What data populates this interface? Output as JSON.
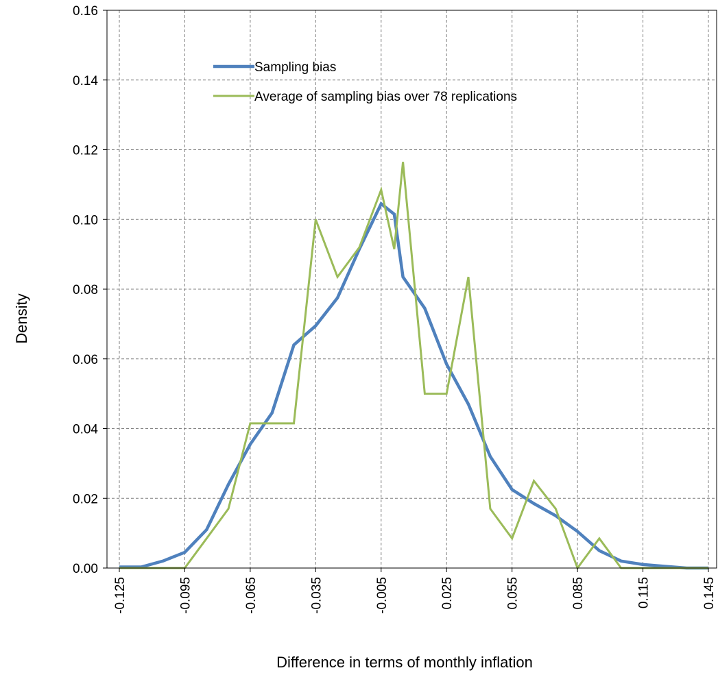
{
  "chart_data": {
    "type": "line",
    "title": "",
    "xlabel": "Difference in terms of monthly inflation",
    "ylabel": "Density",
    "xlim": [
      -0.125,
      0.145
    ],
    "ylim": [
      0,
      0.16
    ],
    "grid": true,
    "legend_position": "top-center",
    "x_ticks": [
      "-0.125",
      "-0.095",
      "-0.065",
      "-0.035",
      "-0.005",
      "0.025",
      "0.055",
      "0.085",
      "0.115",
      "0.145"
    ],
    "y_ticks": [
      "0.00",
      "0.02",
      "0.04",
      "0.06",
      "0.08",
      "0.10",
      "0.12",
      "0.14",
      "0.16"
    ],
    "series": [
      {
        "name": "Sampling bias",
        "color": "#4f81bd",
        "x": [
          -0.125,
          -0.115,
          -0.105,
          -0.095,
          -0.085,
          -0.075,
          -0.065,
          -0.055,
          -0.045,
          -0.035,
          -0.025,
          -0.015,
          -0.005,
          0.001,
          0.005,
          0.015,
          0.025,
          0.035,
          0.045,
          0.055,
          0.065,
          0.075,
          0.085,
          0.095,
          0.105,
          0.115,
          0.125,
          0.135,
          0.145
        ],
        "values": [
          0.0003,
          0.0003,
          0.002,
          0.0045,
          0.011,
          0.024,
          0.0355,
          0.0445,
          0.064,
          0.0695,
          0.0775,
          0.0915,
          0.1045,
          0.1015,
          0.0835,
          0.0745,
          0.0585,
          0.047,
          0.032,
          0.0225,
          0.0185,
          0.015,
          0.0105,
          0.005,
          0.002,
          0.001,
          0.0005,
          0.0,
          0.0
        ]
      },
      {
        "name": "Average of sampling bias over 78 replications",
        "color": "#9bbb59",
        "x": [
          -0.125,
          -0.115,
          -0.105,
          -0.095,
          -0.085,
          -0.075,
          -0.065,
          -0.055,
          -0.045,
          -0.035,
          -0.025,
          -0.015,
          -0.005,
          0.001,
          0.005,
          0.015,
          0.025,
          0.035,
          0.045,
          0.055,
          0.065,
          0.075,
          0.085,
          0.095,
          0.105,
          0.115,
          0.125,
          0.135,
          0.145
        ],
        "values": [
          0.0,
          0.0,
          0.0,
          0.0,
          0.0085,
          0.017,
          0.0415,
          0.0415,
          0.0415,
          0.1,
          0.0835,
          0.092,
          0.1085,
          0.0915,
          0.1165,
          0.05,
          0.05,
          0.0835,
          0.017,
          0.0085,
          0.025,
          0.017,
          0.0,
          0.0085,
          0.0,
          0.0,
          0.0,
          0.0,
          0.0
        ]
      }
    ]
  }
}
